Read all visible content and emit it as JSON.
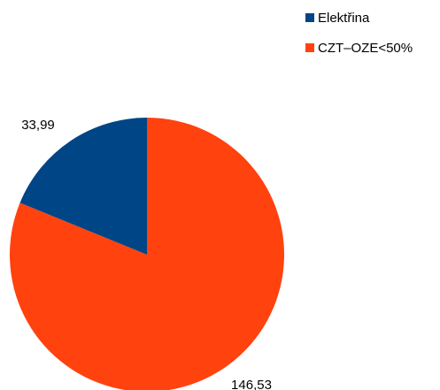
{
  "chart_data": {
    "type": "pie",
    "title": "",
    "series": [
      {
        "name": "Elektřina",
        "value": 33.99,
        "label": "33,99",
        "color": "#004586"
      },
      {
        "name": "CZT–OZE<50%",
        "value": 146.53,
        "label": "146,53",
        "color": "#ff420e"
      }
    ],
    "legend_position": "top-right",
    "start_angle_deg": 0,
    "direction": "counterclockwise"
  }
}
